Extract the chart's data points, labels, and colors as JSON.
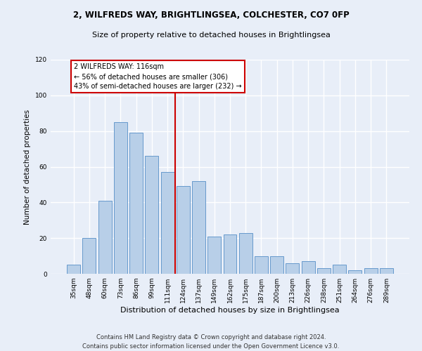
{
  "title1": "2, WILFREDS WAY, BRIGHTLINGSEA, COLCHESTER, CO7 0FP",
  "title2": "Size of property relative to detached houses in Brightlingsea",
  "xlabel": "Distribution of detached houses by size in Brightlingsea",
  "ylabel": "Number of detached properties",
  "footer1": "Contains HM Land Registry data © Crown copyright and database right 2024.",
  "footer2": "Contains public sector information licensed under the Open Government Licence v3.0.",
  "categories": [
    "35sqm",
    "48sqm",
    "60sqm",
    "73sqm",
    "86sqm",
    "99sqm",
    "111sqm",
    "124sqm",
    "137sqm",
    "149sqm",
    "162sqm",
    "175sqm",
    "187sqm",
    "200sqm",
    "213sqm",
    "226sqm",
    "238sqm",
    "251sqm",
    "264sqm",
    "276sqm",
    "289sqm"
  ],
  "values": [
    5,
    20,
    41,
    85,
    79,
    66,
    57,
    49,
    52,
    21,
    22,
    23,
    10,
    10,
    6,
    7,
    3,
    5,
    2,
    3,
    3
  ],
  "bar_color": "#b8cfe8",
  "bar_edge_color": "#6699cc",
  "vline_color": "#cc0000",
  "annotation_title": "2 WILFREDS WAY: 116sqm",
  "annotation_line1": "← 56% of detached houses are smaller (306)",
  "annotation_line2": "43% of semi-detached houses are larger (232) →",
  "annotation_box_facecolor": "#ffffff",
  "annotation_box_edgecolor": "#cc0000",
  "ylim": [
    0,
    120
  ],
  "yticks": [
    0,
    20,
    40,
    60,
    80,
    100,
    120
  ],
  "background_color": "#e8eef8",
  "plot_background": "#e8eef8",
  "grid_color": "#ffffff",
  "title1_fontsize": 8.5,
  "title2_fontsize": 8,
  "xlabel_fontsize": 8,
  "ylabel_fontsize": 7.5,
  "tick_fontsize": 6.5,
  "footer_fontsize": 6,
  "annotation_fontsize": 7
}
